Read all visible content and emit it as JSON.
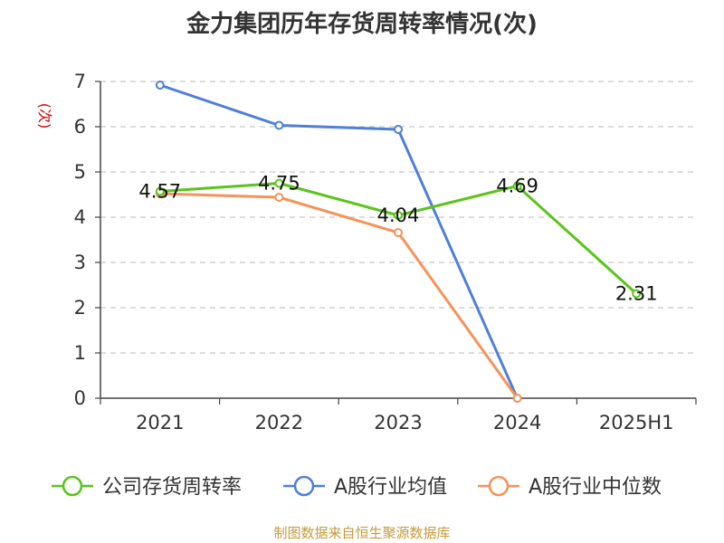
{
  "chart_data": {
    "type": "line",
    "title": "金力集团历年存货周转率情况(次)",
    "ylabel": "(次)",
    "categories": [
      "2021",
      "2022",
      "2023",
      "2024",
      "2025H1"
    ],
    "ylim": [
      0,
      7
    ],
    "yticks": [
      "0",
      "1",
      "2",
      "3",
      "4",
      "5",
      "6",
      "7"
    ],
    "grid": "horizontal-dashed",
    "legend_position": "bottom",
    "series": [
      {
        "name": "公司存货周转率",
        "color": "#5cc31c",
        "values": [
          4.57,
          4.75,
          4.04,
          4.69,
          2.31
        ],
        "labels": [
          "4.57",
          "4.75",
          "4.04",
          "4.69",
          "2.31"
        ]
      },
      {
        "name": "A股行业均值",
        "color": "#4f7fd6",
        "values": [
          6.92,
          6.03,
          5.94,
          0.0,
          null
        ]
      },
      {
        "name": "A股行业中位数",
        "color": "#f5935a",
        "values": [
          4.52,
          4.44,
          3.66,
          0.0,
          null
        ]
      }
    ],
    "source": "制图数据来自恒生聚源数据库"
  }
}
